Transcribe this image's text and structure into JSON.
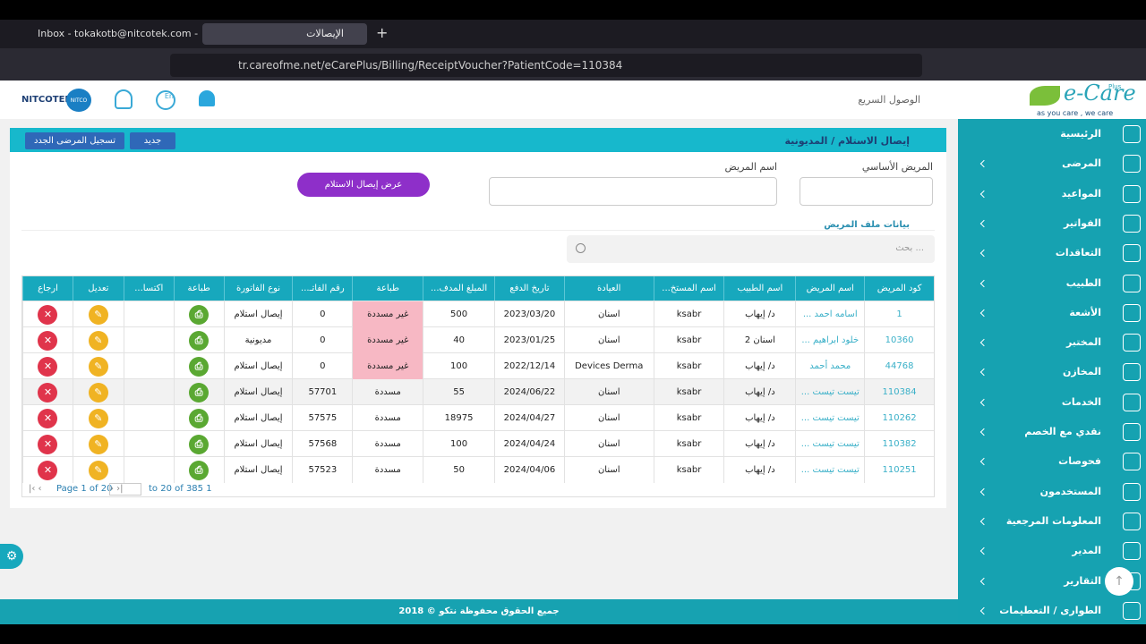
{
  "browser": {
    "tabs": [
      "Inbox - tokakotb@nitcotek.com - N",
      "الإيصالات"
    ],
    "url": "tr.careofme.net/eCarePlus/Billing/ReceiptVoucher?PatientCode=110384"
  },
  "header": {
    "brand": "NITCOTEK",
    "badge": "NITCO",
    "language": "En",
    "quick_access": "الوصول السريع",
    "logo": "e-Care",
    "logo_plus": "Plus",
    "tagline": "as you care , we care"
  },
  "sidebar": {
    "items": [
      "الرئيسية",
      "المرضى",
      "المواعيد",
      "الفواتير",
      "التعاقدات",
      "الطبيب",
      "الأشعة",
      "المختبر",
      "المخازن",
      "الخدمات",
      "نقدي مع الخصم",
      "فحوصات",
      "المستخدمون",
      "المعلومات المرجعية",
      "المدير",
      "التقارير",
      "الطوارى / التعطيمات"
    ]
  },
  "panel": {
    "title": "إيصال الاستلام / المديونية",
    "new_button": "جديد",
    "register_button": "تسجيل المرضى الجدد",
    "main_patient_label": "المريض الأساسي",
    "patient_name_label": "اسم المريض",
    "show_button": "عرض إيصال الاستلام",
    "section_title": "بيانات ملف المريض",
    "search_placeholder": "بحث ..."
  },
  "table": {
    "headers": [
      "كود المريض",
      "اسم المريض",
      "اسم الطبيب",
      "اسم المستخ...",
      "العيادة",
      "تاريخ الدفع",
      "المبلغ المدف...",
      "طباعة",
      "رقم الفاتـ...",
      "نوع الفاتورة",
      "طباعة",
      "اكتسا...",
      "تعديل",
      "ارجاع"
    ],
    "rows": [
      [
        "1",
        "اسامه احمد ...",
        "د/ إيهاب",
        "ksabr",
        "اسنان",
        "2023/03/20",
        "500",
        "غير مسددة",
        "0",
        "إيصال استلام"
      ],
      [
        "10360",
        "خلود ابراهيم ...",
        "اسنان 2",
        "ksabr",
        "اسنان",
        "2023/01/25",
        "40",
        "غير مسددة",
        "0",
        "مديونية"
      ],
      [
        "44768",
        "محمد أحمد",
        "د/ إيهاب",
        "ksabr",
        "Devices Derma",
        "2022/12/14",
        "100",
        "غير مسددة",
        "0",
        "إيصال استلام"
      ],
      [
        "110384",
        "تيست تيست ...",
        "د/ إيهاب",
        "ksabr",
        "اسنان",
        "2024/06/22",
        "55",
        "مسددة",
        "57701",
        "إيصال استلام"
      ],
      [
        "110262",
        "تيست تيست ...",
        "د/ إيهاب",
        "ksabr",
        "اسنان",
        "2024/04/27",
        "18975",
        "مسددة",
        "57575",
        "إيصال استلام"
      ],
      [
        "110382",
        "تيست تيست ...",
        "د/ إيهاب",
        "ksabr",
        "اسنان",
        "2024/04/24",
        "100",
        "مسددة",
        "57568",
        "إيصال استلام"
      ],
      [
        "110251",
        "تيست تيست ...",
        "د/ إيهاب",
        "ksabr",
        "اسنان",
        "2024/04/06",
        "50",
        "مسددة",
        "57523",
        "إيصال استلام"
      ]
    ]
  },
  "pagination": {
    "page": "Page 1 of 20",
    "range": "to 20 of 385 1"
  },
  "footer": {
    "copyright": "2018 © جميع الحقوق محفوظة نتكو"
  }
}
